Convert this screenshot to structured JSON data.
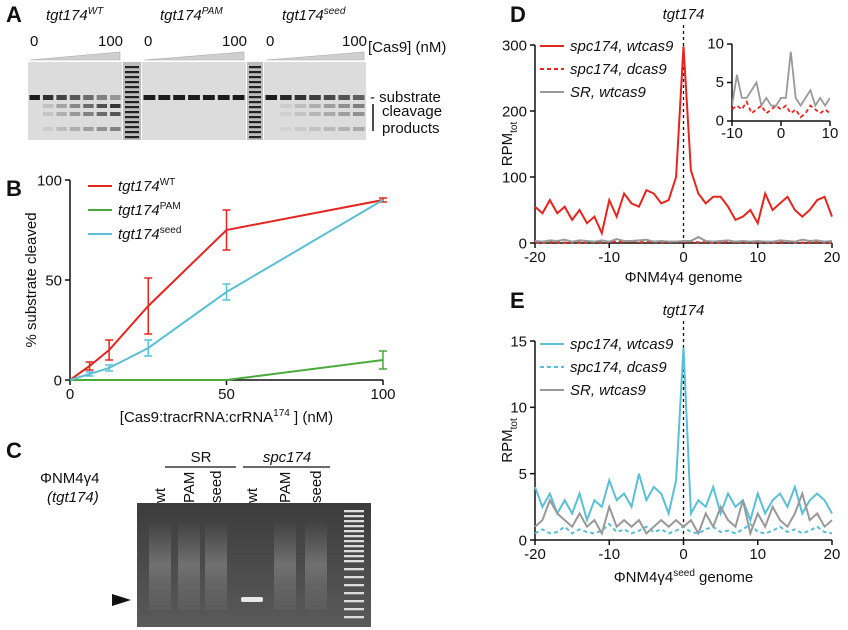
{
  "panels": {
    "A": {
      "label": "A",
      "gels": [
        {
          "name": "tgt174",
          "superscript": "WT",
          "start": "0",
          "end": "100"
        },
        {
          "name": "tgt174",
          "superscript": "PAM",
          "start": "0",
          "end": "100"
        },
        {
          "name": "tgt174",
          "superscript": "seed",
          "start": "0",
          "end": "100"
        }
      ],
      "gradient_label": "[Cas9] (nM)",
      "band_labels": [
        "- substrate",
        "cleavage",
        "products"
      ]
    },
    "B": {
      "label": "B"
    },
    "C": {
      "label": "C",
      "groups": [
        "SR",
        "spc174"
      ],
      "lanes": [
        "wt",
        "PAM",
        "seed",
        "wt",
        "PAM",
        "seed"
      ],
      "row_label": "ΦNM4γ4",
      "row_sublabel": "(tgt174)"
    },
    "D": {
      "label": "D"
    },
    "E": {
      "label": "E"
    }
  },
  "chart_data": [
    {
      "type": "line",
      "xlabel": "[Cas9:tracrRNA:crRNA",
      "xlabel_superscript": "174",
      "xlabel_end": " ] (nM)",
      "ylabel": "% substrate cleaved",
      "x": [
        0,
        6.25,
        12.5,
        25,
        50,
        100
      ],
      "xlim": [
        0,
        100
      ],
      "xticks": [
        0,
        50,
        100
      ],
      "ylim": [
        0,
        100
      ],
      "yticks": [
        0,
        50,
        100
      ],
      "series": [
        {
          "name": "tgt174",
          "name_superscript": "WT",
          "color": "#e3261f",
          "values": [
            0,
            7,
            15,
            37,
            75,
            90
          ],
          "errors": [
            null,
            2,
            5,
            14,
            10,
            1
          ]
        },
        {
          "name": "tgt174",
          "name_superscript": "PAM",
          "color": "#4aaa3a",
          "values": [
            0,
            0,
            0,
            0,
            0,
            10
          ],
          "errors": [
            null,
            null,
            null,
            null,
            null,
            4.5
          ]
        },
        {
          "name": "tgt174",
          "name_superscript": "seed",
          "color": "#5bbfd6",
          "values": [
            0,
            3,
            6,
            16,
            44,
            90
          ],
          "errors": [
            null,
            1,
            1.5,
            4,
            4,
            null
          ]
        }
      ]
    },
    {
      "type": "line",
      "annotation": {
        "text": "tgt174",
        "x": 0
      },
      "xlabel": "ΦNM4γ4 genome",
      "ylabel": "RPM",
      "ylabel_subscript": "tot",
      "x": [
        -20,
        -19,
        -18,
        -17,
        -16,
        -15,
        -14,
        -13,
        -12,
        -11,
        -10,
        -9,
        -8,
        -7,
        -6,
        -5,
        -4,
        -3,
        -2,
        -1,
        0,
        1,
        2,
        3,
        4,
        5,
        6,
        7,
        8,
        9,
        10,
        11,
        12,
        13,
        14,
        15,
        16,
        17,
        18,
        19,
        20
      ],
      "xlim": [
        -20,
        20
      ],
      "xticks": [
        -20,
        -10,
        0,
        10,
        20
      ],
      "ylim": [
        0,
        300
      ],
      "yticks": [
        0,
        100,
        200,
        300
      ],
      "inset": {
        "xlim": [
          -10,
          10
        ],
        "xticks": [
          -10,
          0,
          10
        ],
        "ylim": [
          0,
          10
        ],
        "yticks": [
          0,
          5,
          10
        ]
      },
      "series": [
        {
          "name": "spc174, wtcas9",
          "color": "#e3261f",
          "dashed": false,
          "in_inset": false,
          "values": [
            55,
            45,
            65,
            45,
            55,
            35,
            50,
            30,
            40,
            15,
            65,
            40,
            75,
            60,
            55,
            80,
            75,
            60,
            65,
            100,
            298,
            110,
            75,
            60,
            70,
            70,
            55,
            35,
            40,
            50,
            30,
            75,
            50,
            60,
            70,
            50,
            40,
            50,
            65,
            70,
            40
          ]
        },
        {
          "name": "spc174, dcas9",
          "color": "#e3261f",
          "dashed": true,
          "in_inset": true,
          "values": [
            1,
            0.5,
            1.5,
            1,
            0.5,
            1,
            0.5,
            1,
            1.5,
            1,
            1.5,
            2,
            1.5,
            2.5,
            1,
            1.5,
            2,
            1,
            1.5,
            2,
            1.5,
            2,
            1,
            1.5,
            0.5,
            1,
            2,
            1.5,
            1,
            1.5,
            1,
            1.5,
            0.5,
            1,
            1.5,
            1,
            0.5,
            1,
            1.5,
            1,
            0.5
          ]
        },
        {
          "name": "SR, wtcas9",
          "color": "#999999",
          "dashed": false,
          "in_inset": true,
          "values": [
            3,
            2,
            4,
            3,
            5,
            2,
            4,
            3,
            2,
            4,
            2,
            6,
            3,
            3,
            4,
            5,
            2,
            3,
            2,
            2,
            3,
            3,
            9,
            3,
            2,
            3,
            4,
            2,
            3,
            2,
            3,
            2,
            2,
            4,
            3,
            2,
            5,
            3,
            4,
            2,
            3
          ]
        }
      ]
    },
    {
      "type": "line",
      "annotation": {
        "text": "tgt174",
        "x": 0
      },
      "xlabel": "ΦNM4γ4",
      "xlabel_superscript": "seed",
      "xlabel_end": " genome",
      "ylabel": "RPM",
      "ylabel_subscript": "tot",
      "x": [
        -20,
        -19,
        -18,
        -17,
        -16,
        -15,
        -14,
        -13,
        -12,
        -11,
        -10,
        -9,
        -8,
        -7,
        -6,
        -5,
        -4,
        -3,
        -2,
        -1,
        0,
        1,
        2,
        3,
        4,
        5,
        6,
        7,
        8,
        9,
        10,
        11,
        12,
        13,
        14,
        15,
        16,
        17,
        18,
        19,
        20
      ],
      "xlim": [
        -20,
        20
      ],
      "xticks": [
        -20,
        -10,
        0,
        10,
        20
      ],
      "ylim": [
        0,
        15
      ],
      "yticks": [
        0,
        5,
        10,
        15
      ],
      "series": [
        {
          "name": "spc174, wtcas9",
          "color": "#5bbfd6",
          "dashed": false,
          "values": [
            4,
            2.5,
            3.5,
            2,
            3,
            2,
            3.5,
            1.5,
            3,
            2.5,
            4.5,
            3,
            3.5,
            2.5,
            5,
            3,
            4,
            3.5,
            2,
            4.5,
            14.5,
            2,
            3,
            2.5,
            4,
            2,
            3.5,
            2.5,
            3,
            1.5,
            3.5,
            2,
            3,
            3.5,
            2.5,
            4,
            2,
            3,
            3.5,
            3,
            2
          ]
        },
        {
          "name": "spc174, dcas9",
          "color": "#5bbfd6",
          "dashed": true,
          "values": [
            0.5,
            0.8,
            0.5,
            0.6,
            1,
            0.5,
            0.8,
            0.6,
            0.5,
            0.7,
            1.2,
            0.6,
            0.8,
            0.5,
            0.7,
            1,
            0.6,
            0.8,
            0.5,
            0.7,
            1,
            0.6,
            0.5,
            0.8,
            1,
            0.6,
            0.7,
            0.5,
            0.8,
            1.2,
            0.6,
            0.5,
            0.7,
            1,
            0.6,
            0.8,
            0.5,
            0.7,
            1,
            0.6,
            0.5
          ]
        },
        {
          "name": "SR, wtcas9",
          "color": "#999999",
          "dashed": false,
          "values": [
            1,
            1.5,
            3,
            2,
            1.5,
            1,
            2,
            1,
            1.5,
            0.5,
            2.5,
            1,
            1.5,
            1,
            1.5,
            0.5,
            1,
            1.5,
            1,
            1.5,
            1,
            1.5,
            0.5,
            2,
            1,
            2.5,
            1.5,
            1,
            3,
            0.5,
            2,
            1,
            2.5,
            1.5,
            1,
            2,
            3.5,
            1.5,
            2,
            1,
            1.5
          ]
        }
      ]
    }
  ]
}
